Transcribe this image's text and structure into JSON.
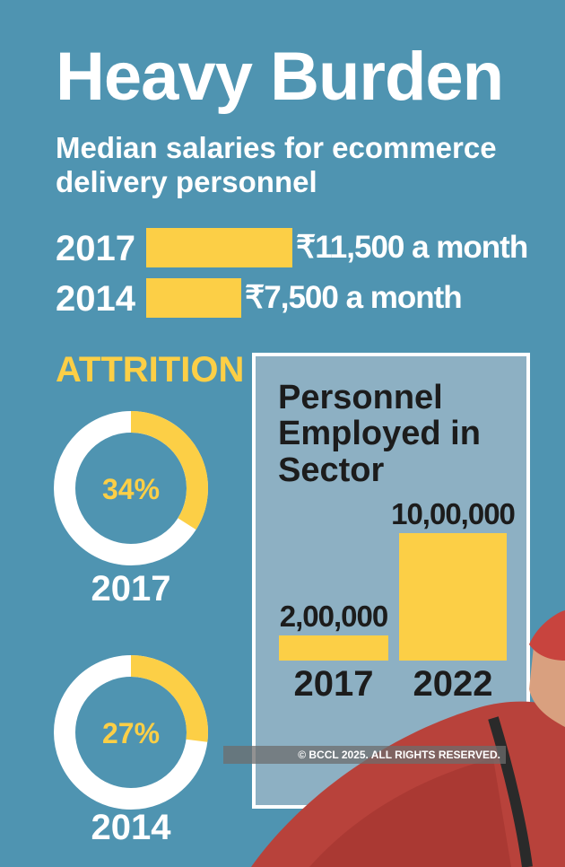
{
  "title": "Heavy Burden",
  "subtitle": "Median salaries for ecommerce delivery personnel",
  "colors": {
    "background": "#4f94b1",
    "accent": "#fccf46",
    "panel": "#8db0c3",
    "ring": "#ffffff",
    "dark_text": "#1c1c1c"
  },
  "chart_data": [
    {
      "type": "bar",
      "orientation": "horizontal",
      "categories": [
        "2017",
        "2014"
      ],
      "values": [
        11500,
        7500
      ],
      "labels": [
        "₹11,500 a month",
        "₹7,500 a month"
      ]
    },
    {
      "type": "pie",
      "title": "ATTRITION",
      "donuts": [
        {
          "year": "2017",
          "value": 34,
          "label": "34%"
        },
        {
          "year": "2014",
          "value": 27,
          "label": "27%"
        }
      ]
    },
    {
      "type": "bar",
      "title": "Personnel Employed in Sector",
      "categories": [
        "2017",
        "2022"
      ],
      "values": [
        200000,
        1000000
      ],
      "labels": [
        "2,00,000",
        "10,00,000"
      ]
    }
  ],
  "copyright": "© BCCL 2025. ALL RIGHTS RESERVED."
}
